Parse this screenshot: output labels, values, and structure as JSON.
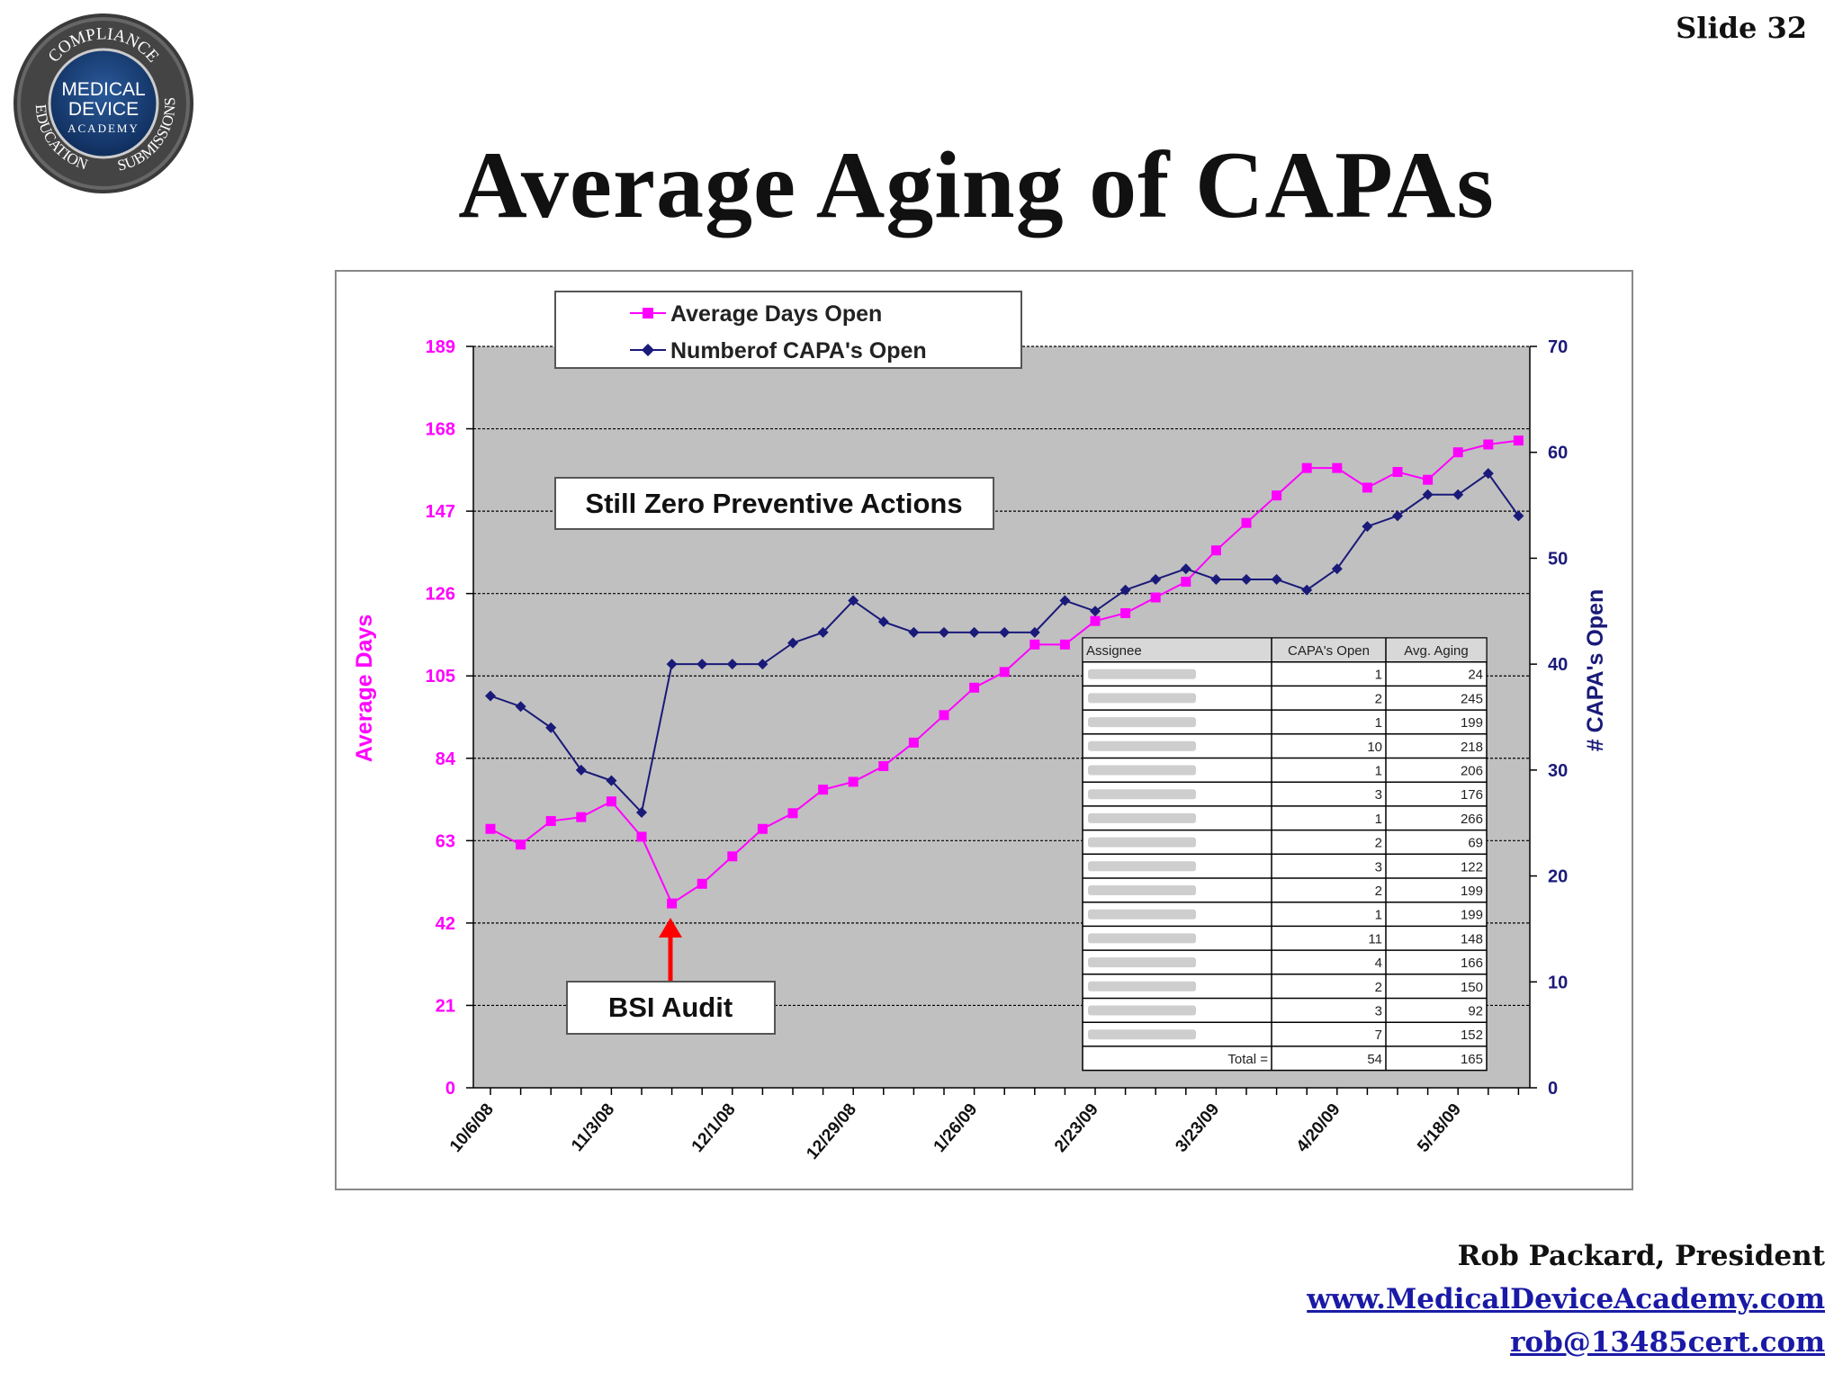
{
  "slide": {
    "number_label": "Slide 32",
    "title": "Average Aging of CAPAs"
  },
  "logo": {
    "top_text": "COMPLIANCE",
    "center_line1": "MEDICAL",
    "center_line2": "DEVICE",
    "center_line3": "ACADEMY",
    "left_text": "EDUCATION",
    "right_text": "SUBMISSIONS"
  },
  "footer": {
    "name": "Rob Packard, President",
    "website": "www.MedicalDeviceAcademy.com",
    "email": "rob@13485cert.com"
  },
  "colors": {
    "avg_days": "#ff00ff",
    "capa_open": "#1a1a7a",
    "plot_bg": "#c0c0c0",
    "arrow": "#ff0000"
  },
  "annotations": {
    "preventive": "Still Zero Preventive Actions",
    "audit": "BSI Audit"
  },
  "chart_data": {
    "type": "line",
    "x_tick_labels": [
      "10/6/08",
      "11/3/08",
      "12/1/08",
      "12/29/08",
      "1/26/09",
      "2/23/09",
      "3/23/09",
      "4/20/09",
      "5/18/09"
    ],
    "ylabel": "Average Days",
    "y2label": "# CAPA's Open",
    "ylim": [
      0,
      189
    ],
    "y_ticks": [
      0,
      21,
      42,
      63,
      84,
      105,
      126,
      147,
      168,
      189
    ],
    "y2lim": [
      0,
      70
    ],
    "y2_ticks": [
      0,
      10,
      20,
      30,
      40,
      50,
      60,
      70
    ],
    "grid": "horizontal dashed",
    "legend_position": "top",
    "series": [
      {
        "name": "Average Days Open",
        "axis": "left",
        "marker": "square",
        "values": [
          66,
          62,
          68,
          69,
          73,
          64,
          47,
          52,
          59,
          66,
          70,
          76,
          78,
          82,
          88,
          95,
          102,
          106,
          113,
          113,
          119,
          121,
          125,
          129,
          137,
          144,
          151,
          158,
          158,
          153,
          157,
          155,
          162,
          164,
          165
        ]
      },
      {
        "name": "Numberof CAPA's Open",
        "axis": "right",
        "marker": "diamond",
        "values": [
          37,
          36,
          34,
          30,
          29,
          26,
          40,
          40,
          40,
          40,
          42,
          43,
          46,
          44,
          43,
          43,
          43,
          43,
          43,
          46,
          45,
          47,
          48,
          49,
          48,
          48,
          48,
          47,
          49,
          53,
          54,
          56,
          56,
          58,
          54
        ]
      }
    ],
    "table": {
      "headers": [
        "Assignee",
        "CAPA's Open",
        "Avg. Aging"
      ],
      "rows": [
        [
          "",
          "1",
          "24"
        ],
        [
          "",
          "2",
          "245"
        ],
        [
          "",
          "1",
          "199"
        ],
        [
          "",
          "10",
          "218"
        ],
        [
          "",
          "1",
          "206"
        ],
        [
          "",
          "3",
          "176"
        ],
        [
          "",
          "1",
          "266"
        ],
        [
          "",
          "2",
          "69"
        ],
        [
          "",
          "3",
          "122"
        ],
        [
          "",
          "2",
          "199"
        ],
        [
          "",
          "1",
          "199"
        ],
        [
          "",
          "11",
          "148"
        ],
        [
          "",
          "4",
          "166"
        ],
        [
          "",
          "2",
          "150"
        ],
        [
          "",
          "3",
          "92"
        ],
        [
          "",
          "7",
          "152"
        ]
      ],
      "total_label": "Total =",
      "total_open": "54",
      "total_aging": "165"
    }
  }
}
